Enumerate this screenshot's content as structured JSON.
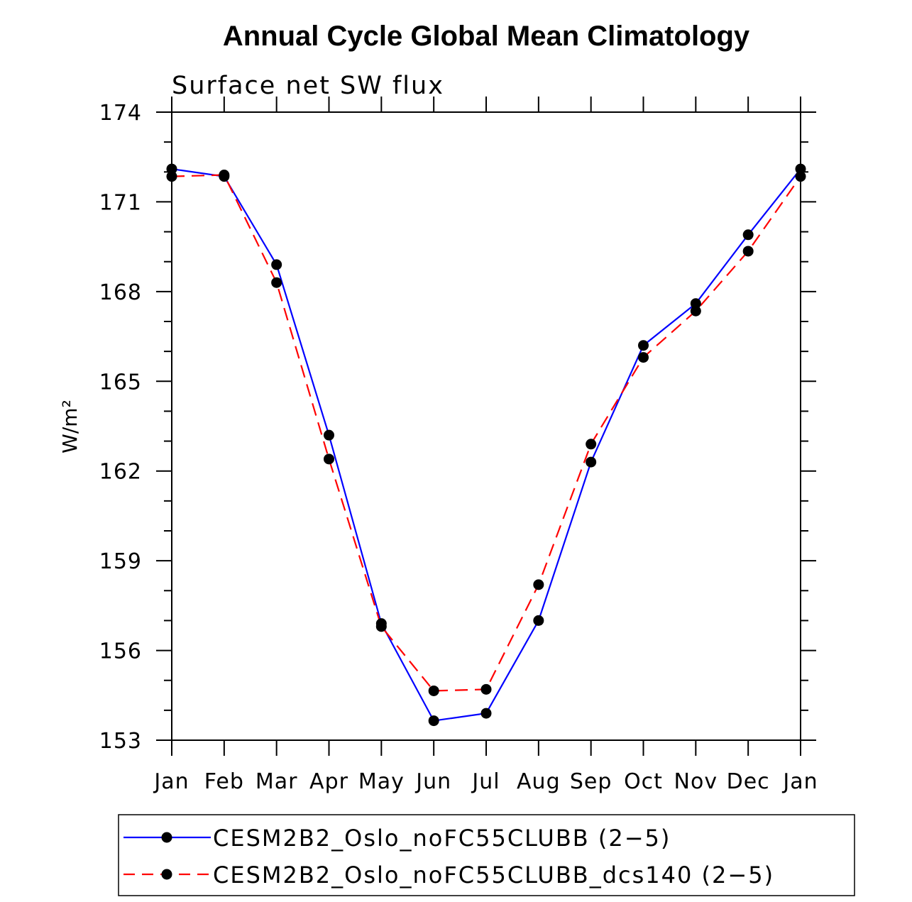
{
  "chart_data": {
    "type": "line",
    "title": "Annual Cycle Global Mean Climatology",
    "subtitle": "Surface net SW flux",
    "ylabel": "W/m²",
    "xlabel": "",
    "categories": [
      "Jan",
      "Feb",
      "Mar",
      "Apr",
      "May",
      "Jun",
      "Jul",
      "Aug",
      "Sep",
      "Oct",
      "Nov",
      "Dec",
      "Jan"
    ],
    "ylim": [
      153,
      174
    ],
    "yticks": [
      "153",
      "156",
      "159",
      "162",
      "165",
      "168",
      "171",
      "174"
    ],
    "grid": false,
    "legend_position": "bottom",
    "series": [
      {
        "name": "CESM2B2_Oslo_noFC55CLUBB (2−5)",
        "color": "#0000ff",
        "style": "solid",
        "values": [
          172.1,
          171.85,
          168.9,
          163.2,
          156.9,
          153.65,
          153.9,
          157.0,
          162.3,
          166.2,
          167.6,
          169.9,
          172.1
        ]
      },
      {
        "name": "CESM2B2_Oslo_noFC55CLUBB_dcs140 (2−5)",
        "color": "#ff0000",
        "style": "dashed",
        "values": [
          171.85,
          171.9,
          168.3,
          162.4,
          156.8,
          154.65,
          154.7,
          158.2,
          162.9,
          165.8,
          167.35,
          169.35,
          171.85
        ]
      }
    ]
  }
}
